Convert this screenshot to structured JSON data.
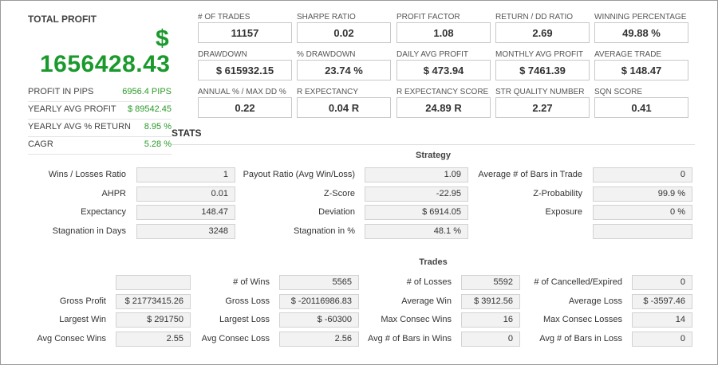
{
  "total_profit": {
    "title": "TOTAL PROFIT",
    "currency": "$",
    "value": "1656428.43"
  },
  "summary": [
    {
      "label": "PROFIT IN PIPS",
      "value": "6956.4 PIPS"
    },
    {
      "label": "YEARLY AVG PROFIT",
      "value": "$ 89542.45"
    },
    {
      "label": "YEARLY AVG % RETURN",
      "value": "8.95 %"
    },
    {
      "label": "CAGR",
      "value": "5.28 %"
    }
  ],
  "metrics": [
    [
      {
        "label": "# OF TRADES",
        "value": "11157"
      },
      {
        "label": "SHARPE RATIO",
        "value": "0.02"
      },
      {
        "label": "PROFIT FACTOR",
        "value": "1.08"
      },
      {
        "label": "RETURN / DD RATIO",
        "value": "2.69"
      },
      {
        "label": "WINNING PERCENTAGE",
        "value": "49.88 %"
      }
    ],
    [
      {
        "label": "DRAWDOWN",
        "value": "$ 615932.15"
      },
      {
        "label": "% DRAWDOWN",
        "value": "23.74 %"
      },
      {
        "label": "DAILY AVG PROFIT",
        "value": "$ 473.94"
      },
      {
        "label": "MONTHLY AVG PROFIT",
        "value": "$ 7461.39"
      },
      {
        "label": "AVERAGE TRADE",
        "value": "$ 148.47"
      }
    ],
    [
      {
        "label": "ANNUAL % / MAX DD %",
        "value": "0.22"
      },
      {
        "label": "R EXPECTANCY",
        "value": "0.04 R"
      },
      {
        "label": "R EXPECTANCY SCORE",
        "value": "24.89 R"
      },
      {
        "label": "STR QUALITY NUMBER",
        "value": "2.27"
      },
      {
        "label": "SQN SCORE",
        "value": "0.41"
      }
    ]
  ],
  "stats_title": "STATS",
  "strategy": {
    "title": "Strategy",
    "rows": [
      [
        {
          "label": "Wins / Losses Ratio",
          "value": "1"
        },
        {
          "label": "Payout Ratio (Avg Win/Loss)",
          "value": "1.09"
        },
        {
          "label": "Average # of Bars in Trade",
          "value": "0"
        }
      ],
      [
        {
          "label": "AHPR",
          "value": "0.01"
        },
        {
          "label": "Z-Score",
          "value": "-22.95"
        },
        {
          "label": "Z-Probability",
          "value": "99.9 %"
        }
      ],
      [
        {
          "label": "Expectancy",
          "value": "148.47"
        },
        {
          "label": "Deviation",
          "value": "$ 6914.05"
        },
        {
          "label": "Exposure",
          "value": "0 %"
        }
      ],
      [
        {
          "label": "Stagnation in Days",
          "value": "3248"
        },
        {
          "label": "Stagnation in %",
          "value": "48.1 %"
        },
        {
          "label": "",
          "value": ""
        }
      ]
    ]
  },
  "trades": {
    "title": "Trades",
    "rows": [
      [
        {
          "label": "",
          "value": ""
        },
        {
          "label": "# of Wins",
          "value": "5565"
        },
        {
          "label": "# of Losses",
          "value": "5592"
        },
        {
          "label": "# of Cancelled/Expired",
          "value": "0"
        }
      ],
      [
        {
          "label": "Gross Profit",
          "value": "$ 21773415.26"
        },
        {
          "label": "Gross Loss",
          "value": "$ -20116986.83"
        },
        {
          "label": "Average Win",
          "value": "$ 3912.56"
        },
        {
          "label": "Average Loss",
          "value": "$ -3597.46"
        }
      ],
      [
        {
          "label": "Largest Win",
          "value": "$ 291750"
        },
        {
          "label": "Largest Loss",
          "value": "$ -60300"
        },
        {
          "label": "Max Consec Wins",
          "value": "16"
        },
        {
          "label": "Max Consec Losses",
          "value": "14"
        }
      ],
      [
        {
          "label": "Avg Consec Wins",
          "value": "2.55"
        },
        {
          "label": "Avg Consec Loss",
          "value": "2.56"
        },
        {
          "label": "Avg # of Bars in Wins",
          "value": "0"
        },
        {
          "label": "Avg # of Bars in Loss",
          "value": "0"
        }
      ]
    ]
  }
}
